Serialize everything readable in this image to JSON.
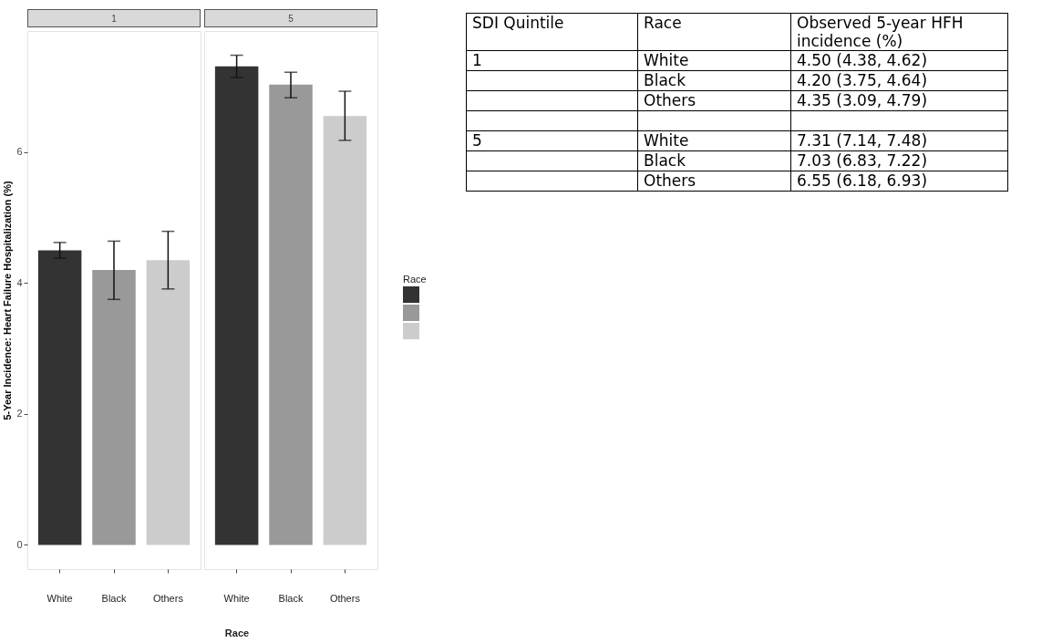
{
  "chart_data": [
    {
      "type": "bar",
      "title": "1",
      "xlabel": "Race",
      "ylabel": "5-Year Incidence: Heart Failure Hospitalization (%)",
      "categories": [
        "White",
        "Black",
        "Others"
      ],
      "values": [
        4.5,
        4.2,
        4.35
      ],
      "colors": [
        "#333333",
        "#999999",
        "#cccccc"
      ],
      "errors": [
        [
          4.38,
          4.62
        ],
        [
          3.75,
          4.64
        ],
        [
          3.91,
          4.79
        ]
      ],
      "ylim": [
        -0.37,
        7.85
      ],
      "yticks": [
        0,
        2,
        4,
        6
      ],
      "grid": false
    },
    {
      "type": "bar",
      "title": "5",
      "legend_title": "Race",
      "categories": [
        "White",
        "Black",
        "Others"
      ],
      "values": [
        7.31,
        7.03,
        6.55
      ],
      "colors": [
        "#333333",
        "#999999",
        "#cccccc"
      ],
      "errors": [
        [
          7.14,
          7.48
        ],
        [
          6.83,
          7.22
        ],
        [
          6.18,
          6.93
        ]
      ],
      "ylim": [
        -0.37,
        7.85
      ],
      "yticks": [
        0,
        2,
        4,
        6
      ],
      "grid": false,
      "tick_labels": "x"
    },
    {
      "type": "other",
      "annotations": [
        "SDI Quintile",
        "Race",
        "Observed 5-year HFH incidence (%)",
        "1",
        "White",
        "4.50 (4.38, 4.62)",
        "Black",
        "4.20 (3.75, 4.64)",
        "Others",
        "4.35 (3.09, 4.79)",
        "5",
        "White",
        "7.31 (7.14, 7.48)",
        "Black",
        "7.03 (6.83, 7.22)",
        "Others",
        "6.55 (6.18, 6.93)"
      ]
    }
  ]
}
